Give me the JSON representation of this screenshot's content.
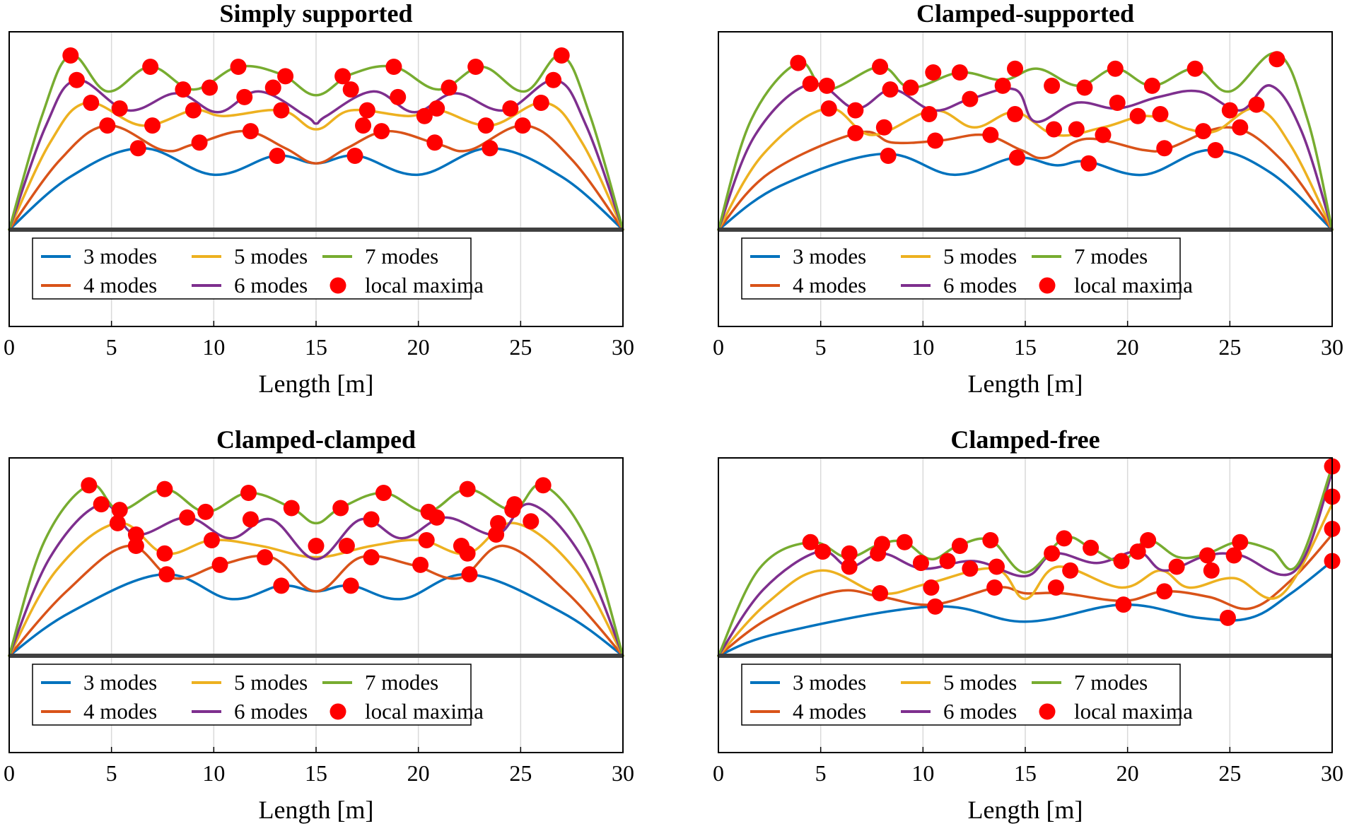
{
  "colors": {
    "3 modes": "#0072BD",
    "4 modes": "#D95319",
    "5 modes": "#EDB120",
    "6 modes": "#7E2F8E",
    "7 modes": "#77AC30",
    "local maxima": "#FF0000",
    "beam": "#404040"
  },
  "chart_data": [
    {
      "type": "line",
      "title": "Simply supported",
      "xlabel": "Length [m]",
      "ylabel": "",
      "xlim": [
        0,
        30
      ],
      "ylim": [
        0,
        1
      ],
      "xticks": [
        "0",
        "5",
        "10",
        "15",
        "20",
        "25",
        "30"
      ],
      "grid": "x",
      "legend_placement": "bottom-left",
      "legend": [
        "3 modes",
        "4 modes",
        "5 modes",
        "6 modes",
        "7 modes",
        "local maxima"
      ],
      "series": [
        {
          "name": "3 modes",
          "x": [
            0,
            3,
            6.5,
            10,
            13,
            15,
            17,
            20,
            23.5,
            27,
            30
          ],
          "y": [
            0,
            0.28,
            0.43,
            0.29,
            0.39,
            0.35,
            0.39,
            0.29,
            0.43,
            0.28,
            0
          ]
        },
        {
          "name": "4 modes",
          "x": [
            0,
            2.5,
            4.8,
            7.5,
            9,
            11.5,
            13.5,
            15,
            16.5,
            18.5,
            21,
            22.5,
            25.2,
            27.5,
            30
          ],
          "y": [
            0,
            0.37,
            0.55,
            0.42,
            0.45,
            0.52,
            0.43,
            0.35,
            0.43,
            0.52,
            0.45,
            0.42,
            0.55,
            0.37,
            0
          ]
        },
        {
          "name": "5 modes",
          "x": [
            0,
            2,
            3.8,
            6.5,
            9,
            10.5,
            13.3,
            15,
            16.7,
            19.5,
            21,
            23.5,
            26.2,
            28,
            30
          ],
          "y": [
            0,
            0.46,
            0.67,
            0.55,
            0.63,
            0.6,
            0.63,
            0.53,
            0.63,
            0.6,
            0.63,
            0.55,
            0.67,
            0.46,
            0
          ]
        },
        {
          "name": "6 modes",
          "x": [
            0,
            1.8,
            3.3,
            5.8,
            8.2,
            10.2,
            12.2,
            14.5,
            15,
            15.5,
            17.8,
            19.8,
            21.8,
            24.2,
            26.7,
            28.2,
            30
          ],
          "y": [
            0,
            0.55,
            0.79,
            0.63,
            0.72,
            0.62,
            0.73,
            0.6,
            0.56,
            0.6,
            0.73,
            0.62,
            0.72,
            0.63,
            0.79,
            0.55,
            0
          ]
        },
        {
          "name": "7 modes",
          "x": [
            0,
            1.6,
            3,
            4.8,
            6.9,
            9,
            11.2,
            13.3,
            15,
            16.7,
            18.8,
            21,
            23.1,
            25.2,
            27,
            28.4,
            30
          ],
          "y": [
            0,
            0.6,
            0.92,
            0.73,
            0.86,
            0.74,
            0.86,
            0.82,
            0.71,
            0.82,
            0.86,
            0.74,
            0.86,
            0.73,
            0.92,
            0.6,
            0
          ]
        }
      ],
      "local_maxima": {
        "x": [
          3.0,
          3.3,
          4.0,
          4.8,
          5.4,
          6.3,
          6.9,
          7.0,
          8.5,
          9.0,
          9.3,
          9.8,
          11.2,
          11.5,
          11.8,
          12.9,
          13.1,
          13.3,
          13.5,
          16.3,
          16.7,
          16.9,
          17.3,
          17.5,
          18.2,
          18.8,
          19.0,
          20.3,
          20.8,
          20.9,
          21.5,
          22.8,
          23.3,
          23.5,
          24.5,
          25.1,
          26.0,
          26.6,
          27.0
        ],
        "y": [
          0.92,
          0.79,
          0.67,
          0.55,
          0.64,
          0.43,
          0.86,
          0.55,
          0.74,
          0.63,
          0.46,
          0.75,
          0.86,
          0.7,
          0.52,
          0.75,
          0.39,
          0.63,
          0.81,
          0.81,
          0.74,
          0.39,
          0.55,
          0.63,
          0.52,
          0.86,
          0.7,
          0.6,
          0.46,
          0.64,
          0.75,
          0.86,
          0.55,
          0.43,
          0.64,
          0.55,
          0.67,
          0.79,
          0.92
        ]
      }
    },
    {
      "type": "line",
      "title": "Clamped-supported",
      "xlabel": "Length [m]",
      "ylabel": "",
      "xlim": [
        0,
        30
      ],
      "ylim": [
        0,
        1
      ],
      "xticks": [
        "0",
        "5",
        "10",
        "15",
        "20",
        "25",
        "30"
      ],
      "grid": "x",
      "legend_placement": "bottom-left",
      "legend": [
        "3 modes",
        "4 modes",
        "5 modes",
        "6 modes",
        "7 modes",
        "local maxima"
      ],
      "series": [
        {
          "name": "3 modes",
          "x": [
            0,
            3,
            8,
            11.5,
            14.5,
            16.5,
            18,
            20.8,
            24,
            27,
            30
          ],
          "y": [
            0,
            0.23,
            0.4,
            0.29,
            0.38,
            0.34,
            0.36,
            0.29,
            0.42,
            0.3,
            0
          ]
        },
        {
          "name": "4 modes",
          "x": [
            0,
            2.5,
            6.8,
            8.5,
            10.8,
            13,
            14.8,
            16,
            18,
            20.8,
            22,
            25,
            27.5,
            30
          ],
          "y": [
            0,
            0.3,
            0.51,
            0.46,
            0.47,
            0.5,
            0.42,
            0.38,
            0.48,
            0.42,
            0.43,
            0.54,
            0.37,
            0
          ]
        },
        {
          "name": "5 modes",
          "x": [
            0,
            2.2,
            5.3,
            7.5,
            10.5,
            12.5,
            14.5,
            16.5,
            18.8,
            21,
            23,
            24.3,
            26.3,
            28,
            30
          ],
          "y": [
            0,
            0.4,
            0.64,
            0.5,
            0.63,
            0.54,
            0.62,
            0.5,
            0.54,
            0.6,
            0.53,
            0.52,
            0.64,
            0.44,
            0
          ]
        },
        {
          "name": "6 modes",
          "x": [
            0,
            1.8,
            4.5,
            6.7,
            8.5,
            10.5,
            12.3,
            14.5,
            15.5,
            17.5,
            19.5,
            21.5,
            23.5,
            25.5,
            27,
            28.5,
            30
          ],
          "y": [
            0,
            0.5,
            0.77,
            0.64,
            0.74,
            0.63,
            0.69,
            0.74,
            0.57,
            0.67,
            0.64,
            0.7,
            0.73,
            0.63,
            0.76,
            0.52,
            0
          ]
        },
        {
          "name": "7 modes",
          "x": [
            0,
            1.6,
            3.9,
            5.3,
            7.9,
            9.4,
            11.8,
            13.9,
            15.6,
            17.6,
            19.4,
            21.2,
            23.3,
            25,
            27.3,
            28.8,
            30
          ],
          "y": [
            0,
            0.58,
            0.88,
            0.74,
            0.86,
            0.75,
            0.83,
            0.79,
            0.85,
            0.76,
            0.85,
            0.76,
            0.85,
            0.73,
            0.93,
            0.58,
            0
          ]
        }
      ],
      "local_maxima": {
        "x": [
          3.9,
          4.5,
          5.3,
          5.4,
          6.7,
          6.7,
          7.9,
          8.1,
          8.3,
          8.4,
          9.4,
          10.3,
          10.5,
          10.6,
          11.8,
          12.3,
          13.3,
          13.9,
          14.5,
          14.5,
          14.6,
          16.3,
          16.4,
          17.5,
          17.9,
          18.1,
          18.8,
          19.4,
          19.5,
          20.5,
          21.2,
          21.6,
          21.8,
          23.3,
          23.7,
          24.3,
          25.0,
          25.5,
          26.3,
          27.3
        ],
        "y": [
          0.88,
          0.77,
          0.76,
          0.64,
          0.63,
          0.51,
          0.86,
          0.54,
          0.39,
          0.74,
          0.75,
          0.61,
          0.83,
          0.47,
          0.83,
          0.69,
          0.5,
          0.76,
          0.61,
          0.85,
          0.38,
          0.76,
          0.53,
          0.53,
          0.75,
          0.35,
          0.5,
          0.85,
          0.67,
          0.6,
          0.76,
          0.61,
          0.43,
          0.85,
          0.52,
          0.42,
          0.63,
          0.54,
          0.66,
          0.9
        ]
      }
    },
    {
      "type": "line",
      "title": "Clamped-clamped",
      "xlabel": "Length [m]",
      "ylabel": "",
      "xlim": [
        0,
        30
      ],
      "ylim": [
        0,
        1
      ],
      "xticks": [
        "0",
        "5",
        "10",
        "15",
        "20",
        "25",
        "30"
      ],
      "grid": "x",
      "legend_placement": "bottom-left",
      "legend": [
        "3 modes",
        "4 modes",
        "5 modes",
        "6 modes",
        "7 modes",
        "local maxima"
      ],
      "series": [
        {
          "name": "3 modes",
          "x": [
            0,
            3,
            7.5,
            10.8,
            13.3,
            15,
            16.7,
            19.2,
            22.5,
            27,
            30
          ],
          "y": [
            0,
            0.23,
            0.43,
            0.3,
            0.37,
            0.34,
            0.37,
            0.3,
            0.43,
            0.23,
            0
          ]
        },
        {
          "name": "4 modes",
          "x": [
            0,
            2.8,
            5.8,
            8,
            10.3,
            12.8,
            15,
            17.2,
            19.7,
            22,
            24.2,
            27.2,
            30
          ],
          "y": [
            0,
            0.34,
            0.58,
            0.41,
            0.48,
            0.52,
            0.34,
            0.52,
            0.48,
            0.41,
            0.58,
            0.34,
            0
          ]
        },
        {
          "name": "5 modes",
          "x": [
            0,
            2.3,
            5.3,
            7.6,
            9.9,
            12.3,
            15,
            17.7,
            20.1,
            22.4,
            24.7,
            27.7,
            30
          ],
          "y": [
            0,
            0.45,
            0.7,
            0.54,
            0.61,
            0.58,
            0.52,
            0.58,
            0.61,
            0.54,
            0.7,
            0.45,
            0
          ]
        },
        {
          "name": "6 modes",
          "x": [
            0,
            2,
            4.5,
            6.2,
            8.7,
            10.8,
            12.8,
            15,
            17.2,
            19.2,
            21.3,
            23.8,
            25.5,
            28,
            30
          ],
          "y": [
            0,
            0.52,
            0.8,
            0.64,
            0.73,
            0.62,
            0.72,
            0.51,
            0.72,
            0.62,
            0.73,
            0.64,
            0.8,
            0.52,
            0
          ]
        },
        {
          "name": "7 modes",
          "x": [
            0,
            1.7,
            3.9,
            5.4,
            7.6,
            9.6,
            11.7,
            13.8,
            15,
            16.2,
            18.3,
            20.4,
            22.4,
            24.6,
            26.1,
            28.3,
            30
          ],
          "y": [
            0,
            0.6,
            0.9,
            0.77,
            0.88,
            0.76,
            0.86,
            0.78,
            0.7,
            0.78,
            0.86,
            0.76,
            0.88,
            0.77,
            0.9,
            0.6,
            0
          ]
        }
      ],
      "local_maxima": {
        "x": [
          3.9,
          4.5,
          5.3,
          5.4,
          6.2,
          6.2,
          7.6,
          7.6,
          7.7,
          8.7,
          9.6,
          9.9,
          10.3,
          11.7,
          11.8,
          12.5,
          13.3,
          13.8,
          15.0,
          16.2,
          16.5,
          16.7,
          17.7,
          17.7,
          18.3,
          20.1,
          20.4,
          20.5,
          20.9,
          22.1,
          22.4,
          22.4,
          22.5,
          23.8,
          23.9,
          24.6,
          24.7,
          25.5,
          26.1
        ],
        "y": [
          0.9,
          0.8,
          0.7,
          0.77,
          0.58,
          0.64,
          0.88,
          0.54,
          0.43,
          0.73,
          0.76,
          0.61,
          0.48,
          0.86,
          0.72,
          0.52,
          0.37,
          0.78,
          0.58,
          0.78,
          0.58,
          0.37,
          0.72,
          0.52,
          0.86,
          0.48,
          0.61,
          0.76,
          0.73,
          0.58,
          0.88,
          0.54,
          0.43,
          0.64,
          0.7,
          0.77,
          0.8,
          0.71,
          0.9
        ]
      }
    },
    {
      "type": "line",
      "title": "Clamped-free",
      "xlabel": "Length [m]",
      "ylabel": "",
      "xlim": [
        0,
        30
      ],
      "ylim": [
        0,
        1
      ],
      "xticks": [
        "0",
        "5",
        "10",
        "15",
        "20",
        "25",
        "30"
      ],
      "grid": "x",
      "legend_placement": "bottom-left",
      "legend": [
        "3 modes",
        "4 modes",
        "5 modes",
        "6 modes",
        "7 modes",
        "local maxima"
      ],
      "series": [
        {
          "name": "3 modes",
          "x": [
            0,
            3,
            10.5,
            15,
            19.8,
            23.5,
            26,
            28,
            30
          ],
          "y": [
            0,
            0.12,
            0.26,
            0.18,
            0.27,
            0.2,
            0.2,
            0.33,
            0.5
          ]
        },
        {
          "name": "4 modes",
          "x": [
            0,
            2.5,
            5.8,
            8,
            10.5,
            13.6,
            15,
            16.8,
            19.8,
            21.8,
            24,
            26,
            28,
            30
          ],
          "y": [
            0,
            0.2,
            0.34,
            0.31,
            0.27,
            0.36,
            0.33,
            0.33,
            0.29,
            0.34,
            0.31,
            0.25,
            0.4,
            0.64
          ]
        },
        {
          "name": "5 modes",
          "x": [
            0,
            2.4,
            5,
            7.9,
            10.2,
            13.5,
            15,
            16.6,
            19.7,
            21.6,
            23,
            25.2,
            27.5,
            30
          ],
          "y": [
            0,
            0.28,
            0.45,
            0.33,
            0.38,
            0.46,
            0.3,
            0.47,
            0.36,
            0.45,
            0.36,
            0.41,
            0.32,
            0.8
          ]
        },
        {
          "name": "6 modes",
          "x": [
            0,
            2.2,
            4.9,
            6.4,
            8,
            10,
            12.5,
            15,
            16.4,
            18.5,
            20.5,
            21.8,
            23.9,
            25.5,
            28.2,
            30
          ],
          "y": [
            0,
            0.35,
            0.55,
            0.47,
            0.54,
            0.46,
            0.5,
            0.42,
            0.54,
            0.49,
            0.55,
            0.45,
            0.53,
            0.53,
            0.45,
            0.97
          ]
        },
        {
          "name": "7 modes",
          "x": [
            0,
            2,
            4.5,
            6.3,
            7.9,
            9.1,
            10.4,
            11.7,
            13.3,
            15,
            16.9,
            18.2,
            19.7,
            21,
            22.5,
            23.9,
            25.4,
            27,
            28.3,
            30
          ],
          "y": [
            0,
            0.46,
            0.6,
            0.52,
            0.59,
            0.6,
            0.51,
            0.58,
            0.61,
            0.44,
            0.62,
            0.57,
            0.5,
            0.61,
            0.52,
            0.54,
            0.6,
            0.56,
            0.48,
            1.0
          ]
        }
      ],
      "local_maxima": {
        "x": [
          4.5,
          5.1,
          6.4,
          6.4,
          7.8,
          7.9,
          8.0,
          9.1,
          9.9,
          10.4,
          10.6,
          11.2,
          11.8,
          12.3,
          13.3,
          13.5,
          13.6,
          16.3,
          16.5,
          16.9,
          17.2,
          18.2,
          19.7,
          19.8,
          20.5,
          21.0,
          21.8,
          22.4,
          23.9,
          24.1,
          24.9,
          25.2,
          25.5,
          30.0,
          30.0,
          30.0,
          30.0
        ],
        "y": [
          0.6,
          0.55,
          0.54,
          0.47,
          0.54,
          0.33,
          0.59,
          0.6,
          0.49,
          0.36,
          0.26,
          0.5,
          0.58,
          0.46,
          0.61,
          0.36,
          0.47,
          0.54,
          0.36,
          0.62,
          0.45,
          0.57,
          0.5,
          0.27,
          0.55,
          0.61,
          0.34,
          0.47,
          0.53,
          0.45,
          0.2,
          0.53,
          0.6,
          1.0,
          0.84,
          0.67,
          0.5
        ]
      }
    }
  ]
}
